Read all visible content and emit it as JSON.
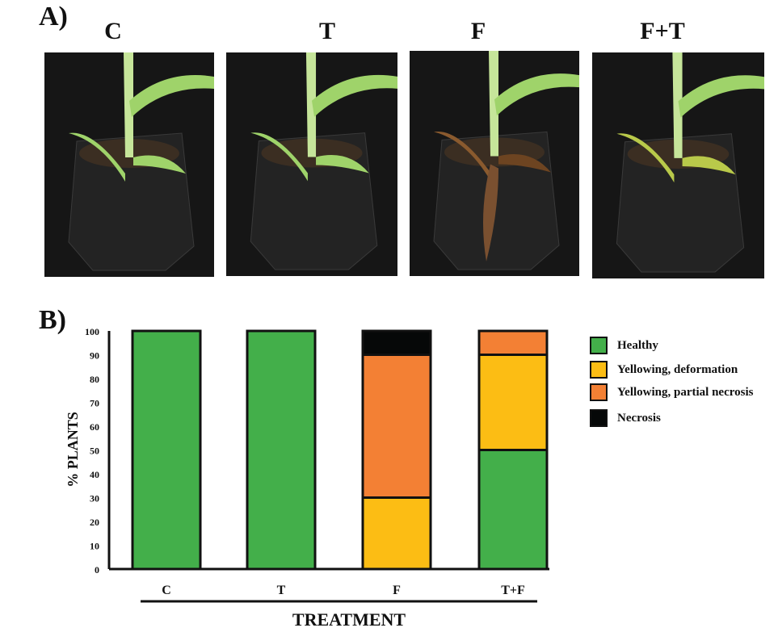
{
  "panel_a_label": "A)",
  "panel_b_label": "B)",
  "photos": [
    {
      "label": "C",
      "condition": "healthy"
    },
    {
      "label": "T",
      "condition": "healthy"
    },
    {
      "label": "F",
      "condition": "necrotic"
    },
    {
      "label": "F+T",
      "condition": "yellowing"
    }
  ],
  "chart_data": {
    "type": "bar",
    "stacked": true,
    "categories": [
      "C",
      "T",
      "F",
      "T+F"
    ],
    "series": [
      {
        "name": "Healthy",
        "color": "#43AF4A",
        "values": [
          100,
          100,
          0,
          50
        ]
      },
      {
        "name": "Yellowing, deformation",
        "color": "#FCBD14",
        "values": [
          0,
          0,
          30,
          40
        ]
      },
      {
        "name": "Yellowing, partial necrosis",
        "color": "#F38034",
        "values": [
          0,
          0,
          60,
          10
        ]
      },
      {
        "name": "Necrosis",
        "color": "#060808",
        "values": [
          0,
          0,
          10,
          0
        ]
      }
    ],
    "xlabel": "TREATMENT",
    "ylabel": "% PLANTS",
    "ylim": [
      0,
      100
    ],
    "yticks": [
      0,
      10,
      20,
      30,
      40,
      50,
      60,
      70,
      80,
      90,
      100
    ],
    "legend": "right",
    "grid": false
  }
}
